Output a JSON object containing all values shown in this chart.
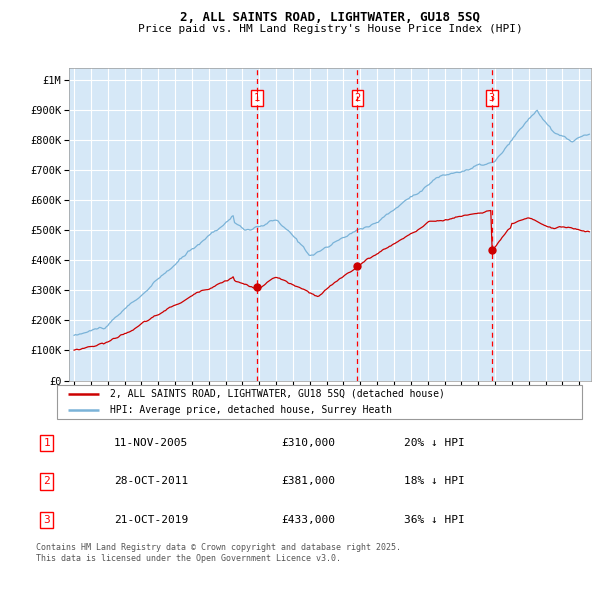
{
  "title1": "2, ALL SAINTS ROAD, LIGHTWATER, GU18 5SQ",
  "title2": "Price paid vs. HM Land Registry's House Price Index (HPI)",
  "ytick_vals": [
    0,
    100000,
    200000,
    300000,
    400000,
    500000,
    600000,
    700000,
    800000,
    900000,
    1000000
  ],
  "ytick_labels": [
    "£0",
    "£100K",
    "£200K",
    "£300K",
    "£400K",
    "£500K",
    "£600K",
    "£700K",
    "£800K",
    "£900K",
    "£1M"
  ],
  "ylim": [
    0,
    1040000
  ],
  "xlim_start": 1994.7,
  "xlim_end": 2025.7,
  "bg_color": "#d6e8f7",
  "grid_color": "#ffffff",
  "red_color": "#cc0000",
  "blue_color": "#7ab3d8",
  "sale_dates": [
    2005.87,
    2011.83,
    2019.81
  ],
  "sale_prices": [
    310000,
    381000,
    433000
  ],
  "sale_labels": [
    "1",
    "2",
    "3"
  ],
  "legend_line1": "2, ALL SAINTS ROAD, LIGHTWATER, GU18 5SQ (detached house)",
  "legend_line2": "HPI: Average price, detached house, Surrey Heath",
  "table_entries": [
    {
      "num": "1",
      "date": "11-NOV-2005",
      "price": "£310,000",
      "pct": "20% ↓ HPI"
    },
    {
      "num": "2",
      "date": "28-OCT-2011",
      "price": "£381,000",
      "pct": "18% ↓ HPI"
    },
    {
      "num": "3",
      "date": "21-OCT-2019",
      "price": "£433,000",
      "pct": "36% ↓ HPI"
    }
  ],
  "footer": "Contains HM Land Registry data © Crown copyright and database right 2025.\nThis data is licensed under the Open Government Licence v3.0."
}
